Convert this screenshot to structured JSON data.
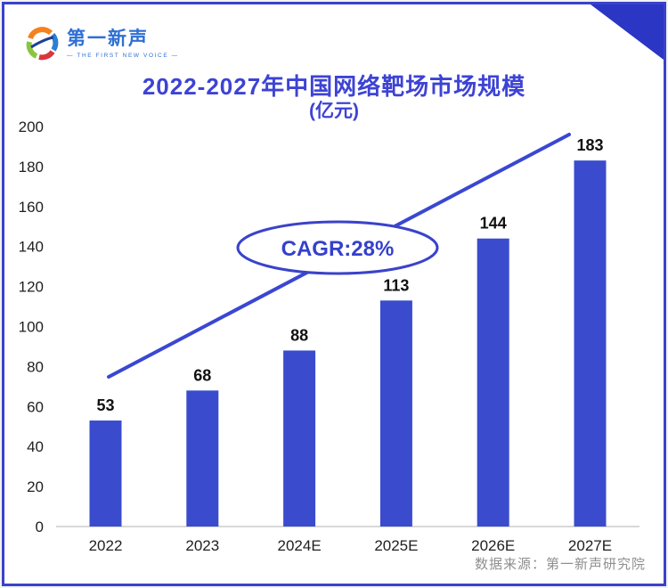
{
  "brand": {
    "name": "第一新声",
    "tagline": "— THE FIRST NEW VOICE —"
  },
  "chart_data": {
    "type": "bar",
    "title": "2022-2027年中国网络靶场市场规模",
    "subtitle": "(亿元)",
    "categories": [
      "2022",
      "2023",
      "2024E",
      "2025E",
      "2026E",
      "2027E"
    ],
    "values": [
      53,
      68,
      88,
      113,
      144,
      183
    ],
    "ylim": [
      0,
      200
    ],
    "yticks": [
      0,
      20,
      40,
      60,
      80,
      100,
      120,
      140,
      160,
      180,
      200
    ],
    "xlabel": "",
    "ylabel": "",
    "grid": false,
    "legend": "none",
    "annotation": "CAGR:28%",
    "trend_line": true,
    "bar_color": "#3a4ccd",
    "line_color": "#3a47d2"
  },
  "source_note": "数据来源：第一新声研究院",
  "colors": {
    "accent": "#3a43c9",
    "corner_triangle": "#2b36c5",
    "title": "#3d43d4",
    "brand_blue": "#2f6fd3",
    "cagr_text": "#3440cc",
    "axis_text": "#1f1f1f",
    "value_text": "#111111",
    "baseline": "#d8d8d8",
    "source_text": "#8f8f8f"
  }
}
